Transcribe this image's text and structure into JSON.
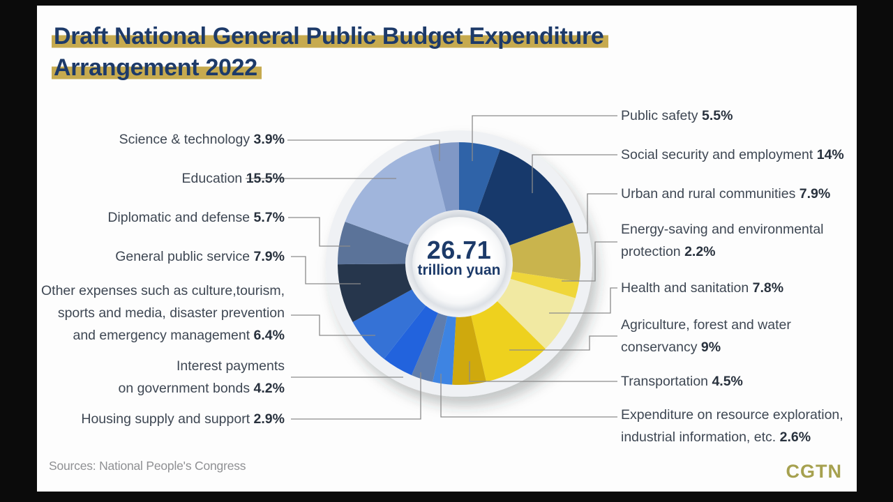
{
  "title": {
    "line1": "Draft National General Public Budget Expenditure",
    "line2": "Arrangement 2022"
  },
  "source": "Sources: National People's Congress",
  "logo": "CGTN",
  "colors": {
    "title_navy": "#1d3a69",
    "highlight_gold": "#c6aa4f",
    "logo_gold": "#a6a14f",
    "label_text": "#3e4753",
    "leader_line": "#8b8b8b",
    "card_background": "#fdfdfd",
    "letterbox": "#0b0b0b"
  },
  "chart_data": {
    "type": "donut",
    "title": "Draft National General Public Budget Expenditure Arrangement 2022",
    "center_label": {
      "value": "26.71",
      "unit": "trillion yuan"
    },
    "units": "percent of total expenditure",
    "legend_position": "callout-labels",
    "start_angle_deg": 0,
    "direction": "clockwise",
    "segments": [
      {
        "key": "public-safety",
        "text": "Public safety",
        "pct_display": "5.5%",
        "value": 5.5,
        "color": "#2f63a8"
      },
      {
        "key": "social-security",
        "text": "Social security and employment",
        "pct_display": "14%",
        "value": 14,
        "color": "#17396b"
      },
      {
        "key": "urban-rural",
        "text": "Urban and rural communities",
        "pct_display": "7.9%",
        "value": 7.9,
        "color": "#c9b44d"
      },
      {
        "key": "energy-saving",
        "text": "Energy-saving and environmental\nprotection",
        "pct_display": "2.2%",
        "value": 2.2,
        "color": "#efd63a"
      },
      {
        "key": "health-sanitation",
        "text": "Health and sanitation",
        "pct_display": "7.8%",
        "value": 7.8,
        "color": "#f1e9a2"
      },
      {
        "key": "agriculture",
        "text": "Agriculture, forest and water\nconservancy",
        "pct_display": "9%",
        "value": 9,
        "color": "#eed11e"
      },
      {
        "key": "transportation",
        "text": "Transportation",
        "pct_display": "4.5%",
        "value": 4.5,
        "color": "#cfa90d"
      },
      {
        "key": "resource-exploration",
        "text": "Expenditure on resource exploration,\nindustrial information, etc.",
        "pct_display": "2.6%",
        "value": 2.6,
        "color": "#3e84e2"
      },
      {
        "key": "housing",
        "text": "Housing supply and support",
        "pct_display": "2.9%",
        "value": 2.9,
        "color": "#5f7dad"
      },
      {
        "key": "interest-payments",
        "text": "Interest payments\non government bonds",
        "pct_display": "4.2%",
        "value": 4.2,
        "color": "#2263dd"
      },
      {
        "key": "other-expenses",
        "text": "Other expenses such as culture,tourism,\nsports and media, disaster prevention\nand emergency management",
        "pct_display": "6.4%",
        "value": 6.4,
        "color": "#3572d6"
      },
      {
        "key": "general-public-service",
        "text": "General public service",
        "pct_display": "7.9%",
        "value": 7.9,
        "color": "#26364c"
      },
      {
        "key": "diplomatic-defense",
        "text": "Diplomatic and defense",
        "pct_display": "5.7%",
        "value": 5.7,
        "color": "#5b7399"
      },
      {
        "key": "education",
        "text": "Education",
        "pct_display": "15.5%",
        "value": 15.5,
        "color": "#a0b5dc"
      },
      {
        "key": "science-technology",
        "text": "Science & technology",
        "pct_display": "3.9%",
        "value": 3.9,
        "color": "#8098c6"
      }
    ]
  }
}
